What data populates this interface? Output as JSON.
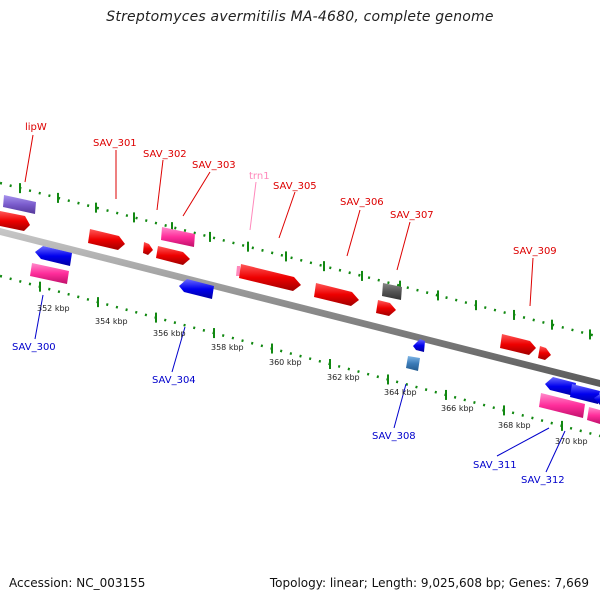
{
  "title": "Streptomyces avermitilis MA-4680, complete genome",
  "footer": {
    "accession": "Accession: NC_003155",
    "summary": "Topology: linear; Length: 9,025,608 bp; Genes: 7,669"
  },
  "scale": {
    "ticks": [
      "352 kbp",
      "354 kbp",
      "356 kbp",
      "358 kbp",
      "360 kbp",
      "362 kbp",
      "364 kbp",
      "366 kbp",
      "368 kbp",
      "370 kbp"
    ]
  },
  "labels": {
    "forward": [
      "lipW",
      "SAV_301",
      "SAV_302",
      "SAV_303",
      "trn1",
      "SAV_305",
      "SAV_306",
      "SAV_307",
      "SAV_309"
    ],
    "reverse": [
      "SAV_300",
      "SAV_304",
      "SAV_308",
      "SAV_311",
      "SAV_312"
    ]
  },
  "colors": {
    "forward_label": "#dd0000",
    "reverse_label": "#0000cc",
    "trna_label": "#ff88bb",
    "gene_red": "#ee0000",
    "gene_blue": "#0000ee",
    "gene_pink": "#ff2d9b",
    "gene_purple": "#7a5ccc",
    "gene_gray": "#555555",
    "gene_steel": "#3b7bb8",
    "axis": "#8c8c8c",
    "tick_green": "#118811"
  }
}
